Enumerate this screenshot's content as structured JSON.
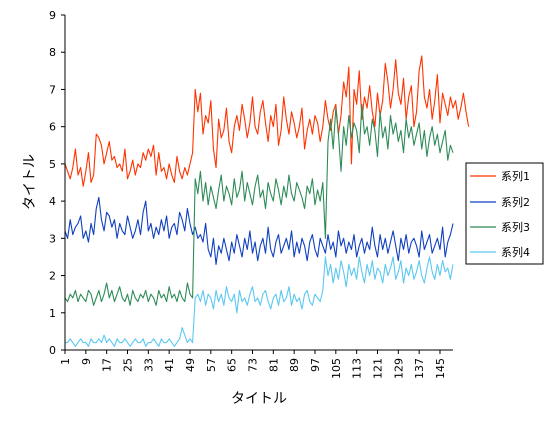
{
  "chart_data": {
    "type": "line",
    "xlabel": "タイトル",
    "ylabel": "タイトル",
    "ylim": [
      0,
      9
    ],
    "yticks": [
      "0",
      "1",
      "2",
      "3",
      "4",
      "5",
      "6",
      "7",
      "8",
      "9"
    ],
    "xlim": [
      1,
      150
    ],
    "xtick_labels": [
      "1",
      "9",
      "17",
      "25",
      "33",
      "41",
      "49",
      "57",
      "65",
      "73",
      "81",
      "89",
      "97",
      "105",
      "113",
      "121",
      "129",
      "137",
      "145"
    ],
    "grid": false,
    "legend_position": "right",
    "series": [
      {
        "name": "系列1",
        "color": "#ff3300",
        "values": [
          5.0,
          4.8,
          4.6,
          4.9,
          5.4,
          4.7,
          4.9,
          4.4,
          4.8,
          5.3,
          4.5,
          4.7,
          5.8,
          5.7,
          5.5,
          5.0,
          5.3,
          5.6,
          5.1,
          5.2,
          4.9,
          5.0,
          4.8,
          5.4,
          4.6,
          4.8,
          5.1,
          4.7,
          5.0,
          4.9,
          5.3,
          5.1,
          5.4,
          5.2,
          5.5,
          4.7,
          5.3,
          4.8,
          4.9,
          4.6,
          5.0,
          4.7,
          4.5,
          5.2,
          4.8,
          4.6,
          4.9,
          4.7,
          5.0,
          5.3,
          7.0,
          6.4,
          6.9,
          5.8,
          6.3,
          6.1,
          6.7,
          5.4,
          4.9,
          6.2,
          5.7,
          5.9,
          6.5,
          5.6,
          5.3,
          6.0,
          6.3,
          5.9,
          6.6,
          6.2,
          5.7,
          6.1,
          6.8,
          6.0,
          5.8,
          6.4,
          6.7,
          6.1,
          5.6,
          6.3,
          6.0,
          6.6,
          5.5,
          5.9,
          6.8,
          6.2,
          5.8,
          6.4,
          6.1,
          5.7,
          6.0,
          6.5,
          5.4,
          5.9,
          6.2,
          5.8,
          6.3,
          6.1,
          5.6,
          6.0,
          6.7,
          6.2,
          5.9,
          6.4,
          6.6,
          5.8,
          6.3,
          7.2,
          6.8,
          7.6,
          5.0,
          7.0,
          6.6,
          7.5,
          6.2,
          6.8,
          6.5,
          7.1,
          6.4,
          6.0,
          6.9,
          6.3,
          6.7,
          7.7,
          7.2,
          6.5,
          7.0,
          7.8,
          6.9,
          6.6,
          7.3,
          6.2,
          6.8,
          7.1,
          6.0,
          6.4,
          7.5,
          7.9,
          6.8,
          6.5,
          7.0,
          6.2,
          6.7,
          7.4,
          6.1,
          6.9,
          6.6,
          6.3,
          6.8,
          6.5,
          6.7,
          6.2,
          6.5,
          6.9,
          6.4,
          6.0
        ]
      },
      {
        "name": "系列2",
        "color": "#1040c0",
        "values": [
          3.2,
          3.0,
          3.5,
          3.1,
          3.3,
          3.4,
          3.6,
          3.0,
          3.2,
          2.9,
          3.4,
          3.1,
          3.8,
          4.1,
          3.5,
          3.2,
          3.7,
          3.6,
          3.3,
          3.5,
          3.0,
          3.4,
          3.2,
          3.1,
          3.6,
          3.3,
          3.0,
          3.2,
          3.5,
          3.1,
          3.7,
          4.0,
          3.2,
          3.4,
          3.0,
          3.3,
          3.1,
          3.5,
          3.2,
          3.6,
          3.0,
          3.3,
          3.4,
          3.1,
          3.7,
          3.5,
          3.2,
          3.8,
          3.4,
          3.1,
          3.3,
          3.0,
          3.1,
          2.9,
          3.4,
          2.7,
          2.5,
          3.0,
          2.3,
          2.8,
          2.6,
          3.0,
          2.7,
          2.4,
          2.9,
          2.6,
          3.1,
          2.8,
          2.5,
          3.0,
          2.7,
          3.2,
          2.6,
          2.9,
          2.4,
          2.8,
          3.0,
          2.6,
          3.3,
          2.7,
          2.5,
          2.9,
          3.1,
          2.6,
          2.8,
          3.0,
          2.7,
          3.2,
          2.5,
          2.9,
          2.6,
          3.0,
          2.8,
          2.4,
          2.9,
          3.1,
          2.7,
          2.5,
          3.0,
          2.8,
          2.6,
          3.1,
          2.7,
          2.9,
          2.5,
          3.2,
          2.8,
          3.0,
          2.6,
          2.9,
          2.7,
          3.1,
          2.5,
          2.8,
          3.0,
          2.6,
          2.9,
          2.7,
          3.3,
          2.8,
          2.5,
          3.1,
          2.7,
          3.0,
          2.6,
          2.9,
          3.2,
          2.8,
          2.4,
          3.0,
          2.7,
          3.1,
          2.6,
          2.9,
          3.0,
          2.8,
          2.5,
          3.2,
          2.7,
          2.9,
          3.1,
          2.6,
          2.8,
          3.0,
          2.7,
          3.3,
          2.5,
          2.9,
          3.1,
          3.4
        ]
      },
      {
        "name": "系列3",
        "color": "#2e8b57",
        "values": [
          1.4,
          1.3,
          1.5,
          1.4,
          1.6,
          1.3,
          1.5,
          1.4,
          1.3,
          1.6,
          1.5,
          1.2,
          1.4,
          1.6,
          1.3,
          1.5,
          1.8,
          1.4,
          1.6,
          1.3,
          1.5,
          1.7,
          1.4,
          1.3,
          1.5,
          1.2,
          1.6,
          1.4,
          1.3,
          1.5,
          1.4,
          1.6,
          1.3,
          1.5,
          1.4,
          1.2,
          1.6,
          1.4,
          1.5,
          1.3,
          1.7,
          1.4,
          1.5,
          1.3,
          1.6,
          1.4,
          1.3,
          1.8,
          1.5,
          1.4,
          4.6,
          4.2,
          4.8,
          4.0,
          4.5,
          3.9,
          4.4,
          4.1,
          3.8,
          4.3,
          4.7,
          4.0,
          4.4,
          4.2,
          3.9,
          4.6,
          4.1,
          4.3,
          4.8,
          4.0,
          4.5,
          4.2,
          3.9,
          4.4,
          4.7,
          4.1,
          4.3,
          3.8,
          4.5,
          4.2,
          4.0,
          4.6,
          4.3,
          3.9,
          4.4,
          4.1,
          4.7,
          4.2,
          4.0,
          4.5,
          4.3,
          4.1,
          3.8,
          4.4,
          4.2,
          4.6,
          3.9,
          4.3,
          4.0,
          4.5,
          3.0,
          5.6,
          6.2,
          5.4,
          6.5,
          5.8,
          4.8,
          6.0,
          5.5,
          6.3,
          5.7,
          6.1,
          5.9,
          5.3,
          6.6,
          5.8,
          6.0,
          5.5,
          6.2,
          5.9,
          5.2,
          6.4,
          5.7,
          6.0,
          5.4,
          6.3,
          5.8,
          6.1,
          5.6,
          5.9,
          5.3,
          6.2,
          5.7,
          6.0,
          5.5,
          5.8,
          6.1,
          5.4,
          5.9,
          5.2,
          5.7,
          6.0,
          5.5,
          5.8,
          5.3,
          5.6,
          5.9,
          5.1,
          5.5,
          5.3
        ]
      },
      {
        "name": "系列4",
        "color": "#5bc8f0",
        "values": [
          0.2,
          0.2,
          0.3,
          0.2,
          0.1,
          0.2,
          0.3,
          0.2,
          0.2,
          0.1,
          0.3,
          0.2,
          0.2,
          0.3,
          0.2,
          0.4,
          0.2,
          0.3,
          0.2,
          0.1,
          0.3,
          0.2,
          0.2,
          0.3,
          0.2,
          0.1,
          0.2,
          0.3,
          0.2,
          0.2,
          0.3,
          0.1,
          0.2,
          0.2,
          0.3,
          0.2,
          0.1,
          0.3,
          0.2,
          0.2,
          0.3,
          0.2,
          0.1,
          0.2,
          0.3,
          0.6,
          0.4,
          0.2,
          0.3,
          0.2,
          1.4,
          1.5,
          1.3,
          1.6,
          1.2,
          1.5,
          1.4,
          1.1,
          1.6,
          1.3,
          1.5,
          1.2,
          1.7,
          1.4,
          1.3,
          1.5,
          1.0,
          1.6,
          1.3,
          1.4,
          1.2,
          1.5,
          1.7,
          1.3,
          1.4,
          1.2,
          1.5,
          1.6,
          1.3,
          1.1,
          1.4,
          1.5,
          1.2,
          1.6,
          1.3,
          1.4,
          1.7,
          1.2,
          1.5,
          1.3,
          1.4,
          1.1,
          1.5,
          1.6,
          1.3,
          1.2,
          1.5,
          1.4,
          1.3,
          1.6,
          2.5,
          2.0,
          2.3,
          1.8,
          2.2,
          1.9,
          2.4,
          2.1,
          1.7,
          2.3,
          2.0,
          2.2,
          1.9,
          2.5,
          2.1,
          1.8,
          2.3,
          2.0,
          2.4,
          1.9,
          2.2,
          2.1,
          1.8,
          2.3,
          2.0,
          2.2,
          2.5,
          1.9,
          2.1,
          2.4,
          1.8,
          2.2,
          2.0,
          2.3,
          1.9,
          2.1,
          2.4,
          2.0,
          1.8,
          2.2,
          2.5,
          2.1,
          1.9,
          2.3,
          2.0,
          2.4,
          2.1,
          2.2,
          1.9,
          2.3
        ]
      }
    ]
  }
}
